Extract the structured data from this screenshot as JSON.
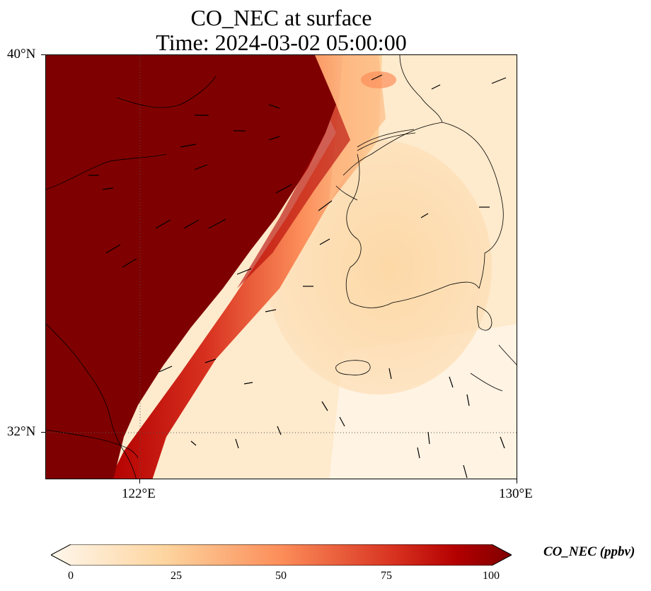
{
  "title": {
    "line1": "CO_NEC at surface",
    "line2": "Time: 2024-03-02 05:00:00"
  },
  "axes": {
    "lat_labels": [
      "40°N",
      "32°N"
    ],
    "lon_labels": [
      "122°E",
      "130°E"
    ],
    "lat_range": [
      31,
      40
    ],
    "lon_range": [
      120,
      130
    ],
    "gridlines": {
      "lat": [
        32
      ],
      "lon": [
        122
      ],
      "style": "dotted"
    }
  },
  "colorbar": {
    "label": "CO_NEC (ppbv)",
    "ticks": [
      "0",
      "25",
      "50",
      "75",
      "100"
    ],
    "range": [
      0,
      100
    ],
    "colormap": "OrRd",
    "extend": "both",
    "colors": [
      "#fff7ec",
      "#fdd49e",
      "#fc8d59",
      "#d7301f",
      "#b30000",
      "#7f0000"
    ]
  },
  "map": {
    "region": "Yellow Sea, Korean Peninsula and East China coast",
    "overlay": "wind vectors",
    "high_concentration_side": "west",
    "max_value_color": "#7f0000"
  }
}
